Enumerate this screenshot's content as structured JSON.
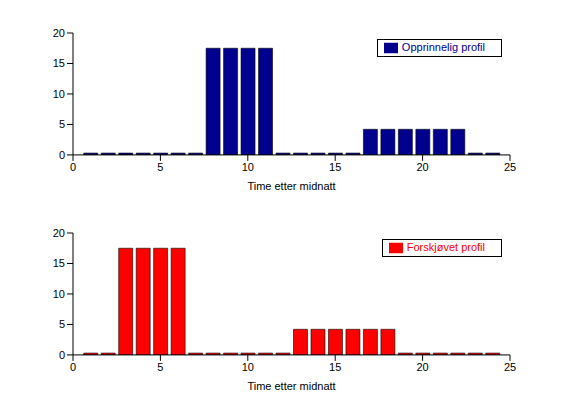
{
  "chart_data": [
    {
      "type": "bar",
      "x": [
        1,
        2,
        3,
        4,
        5,
        6,
        7,
        8,
        9,
        10,
        11,
        12,
        13,
        14,
        15,
        16,
        17,
        18,
        19,
        20,
        21,
        22,
        23,
        24
      ],
      "series": [
        {
          "name": "Opprinnelig profil",
          "color": "#00008f",
          "values": [
            0.3,
            0.3,
            0.3,
            0.3,
            0.3,
            0.3,
            0.3,
            17.5,
            17.5,
            17.5,
            17.5,
            0.3,
            0.3,
            0.3,
            0.3,
            0.3,
            4.2,
            4.2,
            4.2,
            4.2,
            4.2,
            4.2,
            0.3,
            0.3
          ]
        }
      ],
      "xlabel": "Time etter midnatt",
      "xlim": [
        0,
        25
      ],
      "xticks": [
        0,
        5,
        10,
        15,
        20,
        25
      ],
      "ylim": [
        0,
        20
      ],
      "yticks": [
        0,
        5,
        10,
        15,
        20
      ],
      "legend": "upper right"
    },
    {
      "type": "bar",
      "x": [
        1,
        2,
        3,
        4,
        5,
        6,
        7,
        8,
        9,
        10,
        11,
        12,
        13,
        14,
        15,
        16,
        17,
        18,
        19,
        20,
        21,
        22,
        23,
        24
      ],
      "series": [
        {
          "name": "Forskjøvet profil",
          "color": "#ff0000",
          "values": [
            0.3,
            0.3,
            17.5,
            17.5,
            17.5,
            17.5,
            0.3,
            0.3,
            0.3,
            0.3,
            0.3,
            0.3,
            4.2,
            4.2,
            4.2,
            4.2,
            4.2,
            4.2,
            0.3,
            0.3,
            0.3,
            0.3,
            0.3,
            0.3
          ]
        }
      ],
      "xlabel": "Time etter midnatt",
      "xlim": [
        0,
        25
      ],
      "xticks": [
        0,
        5,
        10,
        15,
        20,
        25
      ],
      "ylim": [
        0,
        20
      ],
      "yticks": [
        0,
        5,
        10,
        15,
        20
      ],
      "legend": "upper right"
    }
  ]
}
